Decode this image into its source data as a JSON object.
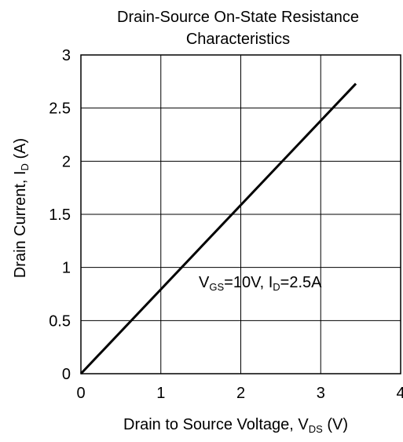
{
  "chart_data": {
    "type": "line",
    "title_line1": "Drain-Source On-State Resistance",
    "title_line2": "Characteristics",
    "xlabel": {
      "main": "Drain to Source Voltage, V",
      "sub": "DS",
      "unit": " (V)"
    },
    "ylabel": {
      "main": "Drain Current, I",
      "sub": "D",
      "unit": " (A)"
    },
    "xlim": [
      0,
      4
    ],
    "ylim": [
      0,
      3
    ],
    "x_ticks": [
      "0",
      "1",
      "2",
      "3",
      "4"
    ],
    "y_ticks": [
      "0",
      "0.5",
      "1",
      "1.5",
      "2",
      "2.5",
      "3"
    ],
    "grid": true,
    "annotation": {
      "vgs_base": "V",
      "vgs_sub": "GS",
      "vgs_value": "=10V, ",
      "id_base": "I",
      "id_sub": "D",
      "id_value": "=2.5A"
    },
    "series": [
      {
        "x": [
          0,
          3.44
        ],
        "y": [
          0,
          2.73
        ]
      }
    ]
  }
}
